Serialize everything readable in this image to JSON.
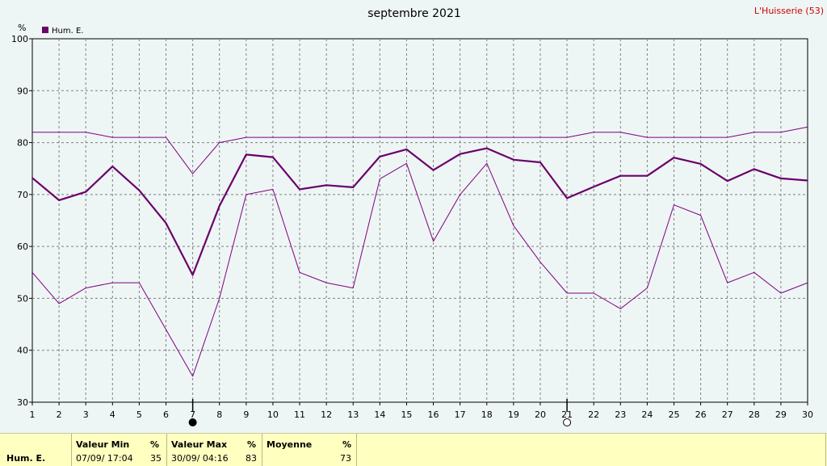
{
  "station": "L'Huisserie (53)",
  "chart_data": {
    "type": "line",
    "title": "septembre 2021",
    "ylabel": "%",
    "ylim": [
      30,
      100
    ],
    "yticks": [
      30,
      40,
      50,
      60,
      70,
      80,
      90,
      100
    ],
    "x": [
      1,
      2,
      3,
      4,
      5,
      6,
      7,
      8,
      9,
      10,
      11,
      12,
      13,
      14,
      15,
      16,
      17,
      18,
      19,
      20,
      21,
      22,
      23,
      24,
      25,
      26,
      27,
      28,
      29,
      30
    ],
    "grid": true,
    "series": [
      {
        "name": "Hum. E.",
        "role": "mean",
        "color": "#6a006a",
        "values": [
          73.2,
          68.9,
          70.5,
          75.4,
          70.8,
          64.5,
          54.5,
          67.8,
          77.7,
          77.2,
          71.0,
          71.8,
          71.4,
          77.3,
          78.7,
          74.7,
          77.8,
          78.9,
          76.7,
          76.2,
          69.3,
          71.5,
          73.6,
          73.6,
          77.1,
          75.9,
          72.6,
          74.9,
          73.1,
          72.7
        ]
      },
      {
        "role": "max",
        "color": "#800080",
        "values": [
          82,
          82,
          82,
          81,
          81,
          81,
          74,
          80,
          81,
          81,
          81,
          81,
          81,
          81,
          81,
          81,
          81,
          81,
          81,
          81,
          81,
          82,
          82,
          81,
          81,
          81,
          81,
          82,
          82,
          83
        ]
      },
      {
        "role": "min",
        "color": "#800080",
        "values": [
          55,
          49,
          52,
          53,
          53,
          44,
          35,
          50,
          70,
          71,
          55,
          53,
          52,
          73,
          76,
          61,
          70,
          76,
          64,
          57,
          51,
          51,
          48,
          52,
          68,
          66,
          53,
          55,
          51,
          53
        ]
      }
    ],
    "markers": [
      {
        "x": 7,
        "symbol": "full-moon"
      },
      {
        "x": 21,
        "symbol": "new-moon"
      }
    ]
  },
  "footer": {
    "series_label": "Hum. E.",
    "min_header": "Valeur Min",
    "min_unit": "%",
    "min_when": "07/09/  17:04",
    "min_value": "35",
    "max_header": "Valeur Max",
    "max_unit": "%",
    "max_when": "30/09/  04:16",
    "max_value": "83",
    "mean_header": "Moyenne",
    "mean_unit": "%",
    "mean_value": "73"
  }
}
